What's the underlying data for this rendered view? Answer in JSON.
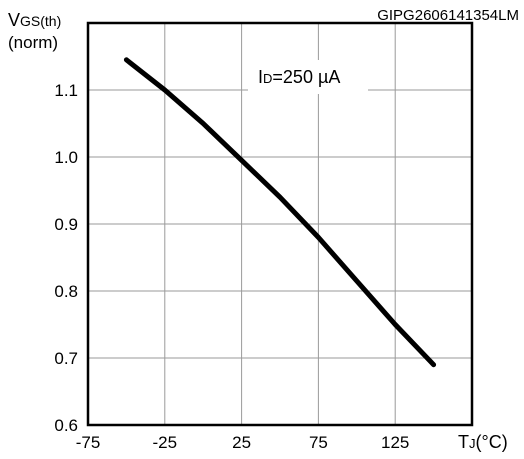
{
  "chart_data": {
    "type": "line",
    "title": "",
    "figure_code": "GIPG2606141354LM",
    "ylabel": {
      "main": "V",
      "sub": "GS(th)",
      "unit": "(norm)"
    },
    "xlabel": {
      "main": "T",
      "sub": "J",
      "unit": "(°C)"
    },
    "annotation": {
      "main": "I",
      "sub": "D",
      "text": "=250 µA"
    },
    "xlim": [
      -75,
      175
    ],
    "ylim": [
      0.6,
      1.2
    ],
    "x_ticks": [
      -75,
      -25,
      25,
      75,
      125
    ],
    "x_tick_labels": [
      "-75",
      "-25",
      "25",
      "75",
      "125"
    ],
    "y_ticks": [
      0.6,
      0.7,
      0.8,
      0.9,
      1.0,
      1.1
    ],
    "y_tick_labels": [
      "0.6",
      "0.7",
      "0.8",
      "0.9",
      "1.0",
      "1.1"
    ],
    "grid": true,
    "series": [
      {
        "x": [
          -50,
          -25,
          0,
          25,
          50,
          75,
          100,
          125,
          150
        ],
        "y": [
          1.145,
          1.1,
          1.05,
          0.995,
          0.94,
          0.88,
          0.815,
          0.75,
          0.69
        ]
      }
    ]
  }
}
